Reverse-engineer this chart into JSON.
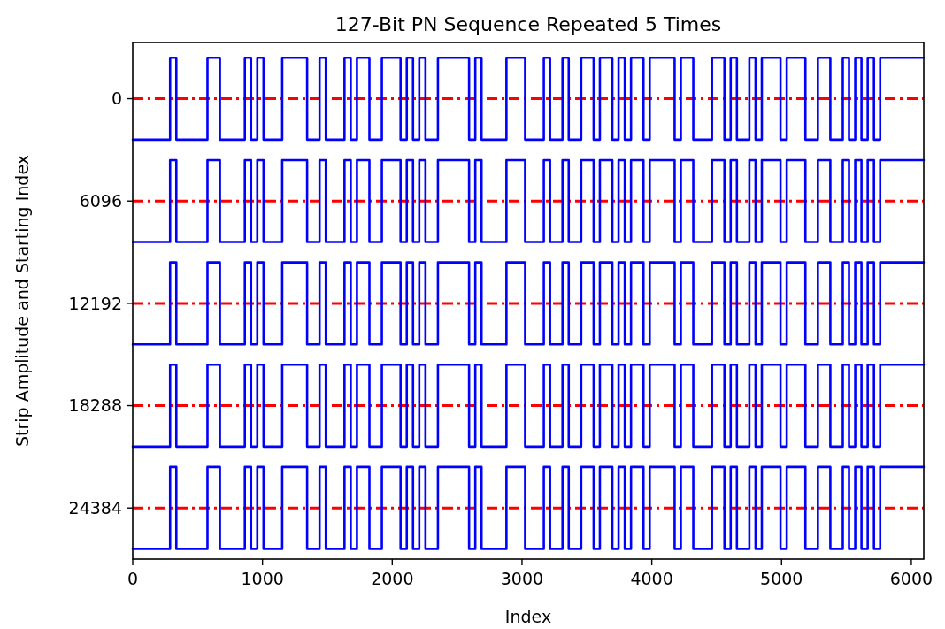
{
  "chart_data": {
    "type": "step",
    "title": "127-Bit PN Sequence Repeated 5 Times",
    "xlabel": "Index",
    "ylabel": "Strip Amplitude and Starting Index",
    "xlim": [
      0,
      6096
    ],
    "xticks": [
      0,
      1000,
      2000,
      3000,
      4000,
      5000,
      6000
    ],
    "ylim": [
      27430,
      -3350
    ],
    "yticks": [
      0,
      6096,
      12192,
      18288,
      24384
    ],
    "grid": false,
    "line_style": "solid",
    "ref_lines": [
      {
        "axis": "y",
        "value": 0,
        "color": "#ff0000",
        "line_style": "dashdot"
      },
      {
        "axis": "y",
        "value": 6096,
        "color": "#ff0000",
        "line_style": "dashdot"
      },
      {
        "axis": "y",
        "value": 12192,
        "color": "#ff0000",
        "line_style": "dashdot"
      },
      {
        "axis": "y",
        "value": 18288,
        "color": "#ff0000",
        "line_style": "dashdot"
      },
      {
        "axis": "y",
        "value": 24384,
        "color": "#ff0000",
        "line_style": "dashdot"
      }
    ],
    "x": [
      0,
      48,
      96,
      144,
      192,
      240,
      288,
      336,
      384,
      432,
      480,
      528,
      576,
      624,
      672,
      720,
      768,
      816,
      864,
      912,
      960,
      1008,
      1056,
      1104,
      1152,
      1200,
      1248,
      1296,
      1344,
      1392,
      1440,
      1488,
      1536,
      1584,
      1632,
      1680,
      1728,
      1776,
      1824,
      1872,
      1920,
      1968,
      2016,
      2064,
      2112,
      2160,
      2208,
      2256,
      2304,
      2352,
      2400,
      2448,
      2496,
      2544,
      2592,
      2640,
      2688,
      2736,
      2784,
      2832,
      2880,
      2928,
      2976,
      3024,
      3072,
      3120,
      3168,
      3216,
      3264,
      3312,
      3360,
      3408,
      3456,
      3504,
      3552,
      3600,
      3648,
      3696,
      3744,
      3792,
      3840,
      3888,
      3936,
      3984,
      4032,
      4080,
      4128,
      4176,
      4224,
      4272,
      4320,
      4368,
      4416,
      4464,
      4512,
      4560,
      4608,
      4656,
      4704,
      4752,
      4800,
      4848,
      4896,
      4944,
      4992,
      5040,
      5088,
      5136,
      5184,
      5232,
      5280,
      5328,
      5376,
      5424,
      5472,
      5520,
      5568,
      5616,
      5664,
      5712,
      5760,
      5808,
      5856,
      5904,
      5952,
      6000,
      6048,
      6096
    ],
    "series": [
      {
        "color": "#0000ff",
        "values": [
          2440,
          2440,
          2440,
          2440,
          2440,
          2440,
          -2440,
          2440,
          2440,
          2440,
          2440,
          2440,
          -2440,
          -2440,
          2440,
          2440,
          2440,
          2440,
          -2440,
          2440,
          -2440,
          2440,
          2440,
          2440,
          -2440,
          -2440,
          -2440,
          -2440,
          2440,
          2440,
          -2440,
          2440,
          2440,
          2440,
          -2440,
          2440,
          -2440,
          -2440,
          2440,
          2440,
          -2440,
          -2440,
          -2440,
          2440,
          -2440,
          2440,
          -2440,
          2440,
          2440,
          -2440,
          -2440,
          -2440,
          -2440,
          -2440,
          2440,
          -2440,
          2440,
          2440,
          2440,
          2440,
          -2440,
          -2440,
          -2440,
          2440,
          2440,
          2440,
          -2440,
          2440,
          2440,
          -2440,
          2440,
          2440,
          -2440,
          -2440,
          2440,
          -2440,
          -2440,
          2440,
          -2440,
          2440,
          -2440,
          -2440,
          2440,
          -2440,
          -2440,
          -2440,
          -2440,
          2440,
          -2440,
          -2440,
          2440,
          2440,
          2440,
          -2440,
          -2440,
          2440,
          -2440,
          2440,
          2440,
          -2440,
          2440,
          -2440,
          -2440,
          -2440,
          2440,
          -2440,
          -2440,
          -2440,
          2440,
          2440,
          -2440,
          -2440,
          2440,
          2440,
          -2440,
          2440,
          -2440,
          2440,
          -2440,
          2440,
          -2440,
          -2440,
          -2440,
          -2440,
          -2440,
          -2440,
          -2440,
          -2440
        ]
      },
      {
        "color": "#0000ff",
        "values": [
          8536,
          8536,
          8536,
          8536,
          8536,
          8536,
          3656,
          8536,
          8536,
          8536,
          8536,
          8536,
          3656,
          3656,
          8536,
          8536,
          8536,
          8536,
          3656,
          8536,
          3656,
          8536,
          8536,
          8536,
          3656,
          3656,
          3656,
          3656,
          8536,
          8536,
          3656,
          8536,
          8536,
          8536,
          3656,
          8536,
          3656,
          3656,
          8536,
          8536,
          3656,
          3656,
          3656,
          8536,
          3656,
          8536,
          3656,
          8536,
          8536,
          3656,
          3656,
          3656,
          3656,
          3656,
          8536,
          3656,
          8536,
          8536,
          8536,
          8536,
          3656,
          3656,
          3656,
          8536,
          8536,
          8536,
          3656,
          8536,
          8536,
          3656,
          8536,
          8536,
          3656,
          3656,
          8536,
          3656,
          3656,
          8536,
          3656,
          8536,
          3656,
          3656,
          8536,
          3656,
          3656,
          3656,
          3656,
          8536,
          3656,
          3656,
          8536,
          8536,
          8536,
          3656,
          3656,
          8536,
          3656,
          8536,
          8536,
          3656,
          8536,
          3656,
          3656,
          3656,
          8536,
          3656,
          3656,
          3656,
          8536,
          8536,
          3656,
          3656,
          8536,
          8536,
          3656,
          8536,
          3656,
          8536,
          3656,
          8536,
          3656,
          3656,
          3656,
          3656,
          3656,
          3656,
          3656,
          3656
        ]
      },
      {
        "color": "#0000ff",
        "values": [
          14632,
          14632,
          14632,
          14632,
          14632,
          14632,
          9752,
          14632,
          14632,
          14632,
          14632,
          14632,
          9752,
          9752,
          14632,
          14632,
          14632,
          14632,
          9752,
          14632,
          9752,
          14632,
          14632,
          14632,
          9752,
          9752,
          9752,
          9752,
          14632,
          14632,
          9752,
          14632,
          14632,
          14632,
          9752,
          14632,
          9752,
          9752,
          14632,
          14632,
          9752,
          9752,
          9752,
          14632,
          9752,
          14632,
          9752,
          14632,
          14632,
          9752,
          9752,
          9752,
          9752,
          9752,
          14632,
          9752,
          14632,
          14632,
          14632,
          14632,
          9752,
          9752,
          9752,
          14632,
          14632,
          14632,
          9752,
          14632,
          14632,
          9752,
          14632,
          14632,
          9752,
          9752,
          14632,
          9752,
          9752,
          14632,
          9752,
          14632,
          9752,
          9752,
          14632,
          9752,
          9752,
          9752,
          9752,
          14632,
          9752,
          9752,
          14632,
          14632,
          14632,
          9752,
          9752,
          14632,
          9752,
          14632,
          14632,
          9752,
          14632,
          9752,
          9752,
          9752,
          14632,
          9752,
          9752,
          9752,
          14632,
          14632,
          9752,
          9752,
          14632,
          14632,
          9752,
          14632,
          9752,
          14632,
          9752,
          14632,
          9752,
          9752,
          9752,
          9752,
          9752,
          9752,
          9752,
          9752
        ]
      },
      {
        "color": "#0000ff",
        "values": [
          20728,
          20728,
          20728,
          20728,
          20728,
          20728,
          15848,
          20728,
          20728,
          20728,
          20728,
          20728,
          15848,
          15848,
          20728,
          20728,
          20728,
          20728,
          15848,
          20728,
          15848,
          20728,
          20728,
          20728,
          15848,
          15848,
          15848,
          15848,
          20728,
          20728,
          15848,
          20728,
          20728,
          20728,
          15848,
          20728,
          15848,
          15848,
          20728,
          20728,
          15848,
          15848,
          15848,
          20728,
          15848,
          20728,
          15848,
          20728,
          20728,
          15848,
          15848,
          15848,
          15848,
          15848,
          20728,
          15848,
          20728,
          20728,
          20728,
          20728,
          15848,
          15848,
          15848,
          20728,
          20728,
          20728,
          15848,
          20728,
          20728,
          15848,
          20728,
          20728,
          15848,
          15848,
          20728,
          15848,
          15848,
          20728,
          15848,
          20728,
          15848,
          15848,
          20728,
          15848,
          15848,
          15848,
          15848,
          20728,
          15848,
          15848,
          20728,
          20728,
          20728,
          15848,
          15848,
          20728,
          15848,
          20728,
          20728,
          15848,
          20728,
          15848,
          15848,
          15848,
          20728,
          15848,
          15848,
          15848,
          20728,
          20728,
          15848,
          15848,
          20728,
          20728,
          15848,
          20728,
          15848,
          20728,
          15848,
          20728,
          15848,
          15848,
          15848,
          15848,
          15848,
          15848,
          15848,
          15848
        ]
      },
      {
        "color": "#0000ff",
        "values": [
          26824,
          26824,
          26824,
          26824,
          26824,
          26824,
          21944,
          26824,
          26824,
          26824,
          26824,
          26824,
          21944,
          21944,
          26824,
          26824,
          26824,
          26824,
          21944,
          26824,
          21944,
          26824,
          26824,
          26824,
          21944,
          21944,
          21944,
          21944,
          26824,
          26824,
          21944,
          26824,
          26824,
          26824,
          21944,
          26824,
          21944,
          21944,
          26824,
          26824,
          21944,
          21944,
          21944,
          26824,
          21944,
          26824,
          21944,
          26824,
          26824,
          21944,
          21944,
          21944,
          21944,
          21944,
          26824,
          21944,
          26824,
          26824,
          26824,
          26824,
          21944,
          21944,
          21944,
          26824,
          26824,
          26824,
          21944,
          26824,
          26824,
          21944,
          26824,
          26824,
          21944,
          21944,
          26824,
          21944,
          21944,
          26824,
          21944,
          26824,
          21944,
          21944,
          26824,
          21944,
          21944,
          21944,
          21944,
          26824,
          21944,
          21944,
          26824,
          26824,
          26824,
          21944,
          21944,
          26824,
          21944,
          26824,
          26824,
          21944,
          26824,
          21944,
          21944,
          21944,
          26824,
          21944,
          21944,
          21944,
          26824,
          26824,
          21944,
          21944,
          26824,
          26824,
          21944,
          26824,
          21944,
          26824,
          21944,
          26824,
          21944,
          21944,
          21944,
          21944,
          21944,
          21944,
          21944,
          21944
        ]
      }
    ]
  }
}
